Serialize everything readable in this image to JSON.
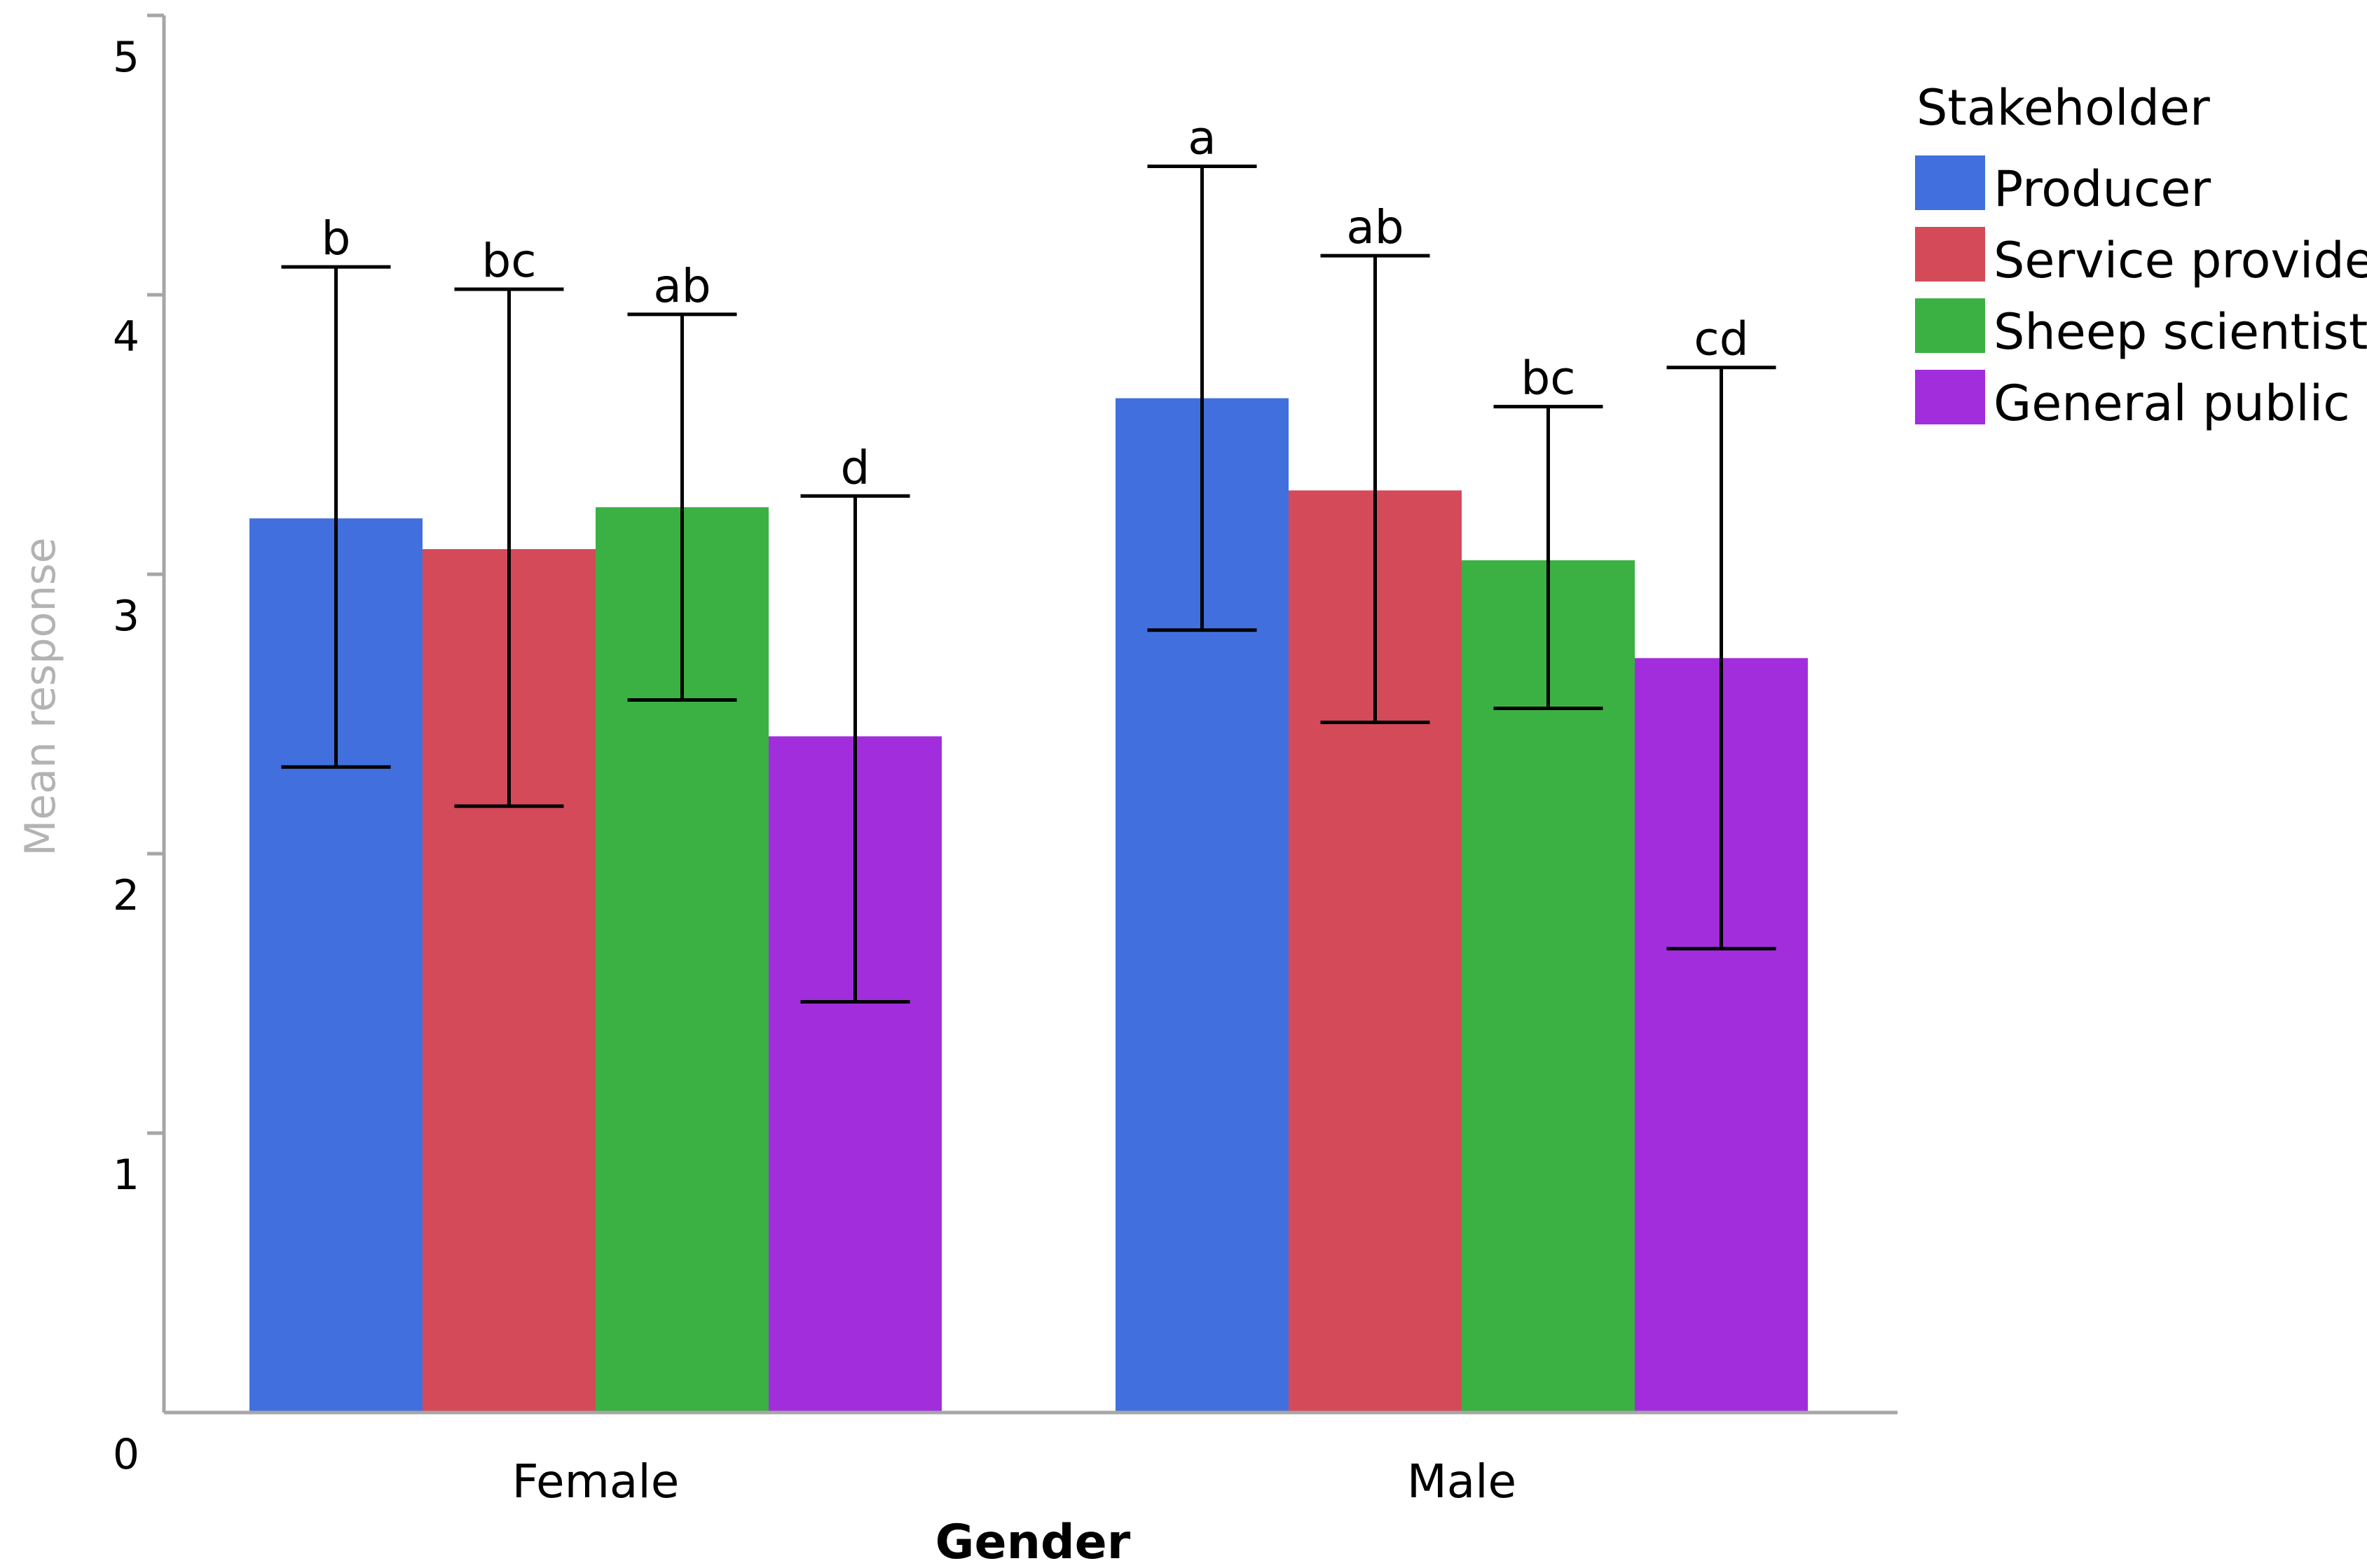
{
  "chart_data": {
    "type": "bar",
    "xlabel": "Gender",
    "ylabel": "Mean response",
    "ylim": [
      0,
      5
    ],
    "yticks": [
      0,
      1,
      2,
      3,
      4,
      5
    ],
    "categories": [
      "Female",
      "Male"
    ],
    "grid": false,
    "legend": {
      "title": "Stakeholder",
      "position": "top-right"
    },
    "series": [
      {
        "name": "Producer",
        "color": "#4170de",
        "values": [
          3.2,
          3.63
        ],
        "error_low": [
          2.31,
          2.8
        ],
        "error_high": [
          4.1,
          4.46
        ],
        "sig_letters": [
          "b",
          "a"
        ]
      },
      {
        "name": "Service provider",
        "color": "#d44a58",
        "values": [
          3.09,
          3.3
        ],
        "error_low": [
          2.17,
          2.47
        ],
        "error_high": [
          4.02,
          4.14
        ],
        "sig_letters": [
          "bc",
          "ab"
        ]
      },
      {
        "name": "Sheep scientist",
        "color": "#3bb144",
        "values": [
          3.24,
          3.05
        ],
        "error_low": [
          2.55,
          2.52
        ],
        "error_high": [
          3.93,
          3.6
        ],
        "sig_letters": [
          "ab",
          "bc"
        ]
      },
      {
        "name": "General public",
        "color": "#a12ddd",
        "values": [
          2.42,
          2.7
        ],
        "error_low": [
          1.47,
          1.66
        ],
        "error_high": [
          3.28,
          3.74
        ],
        "sig_letters": [
          "d",
          "cd"
        ]
      }
    ]
  }
}
